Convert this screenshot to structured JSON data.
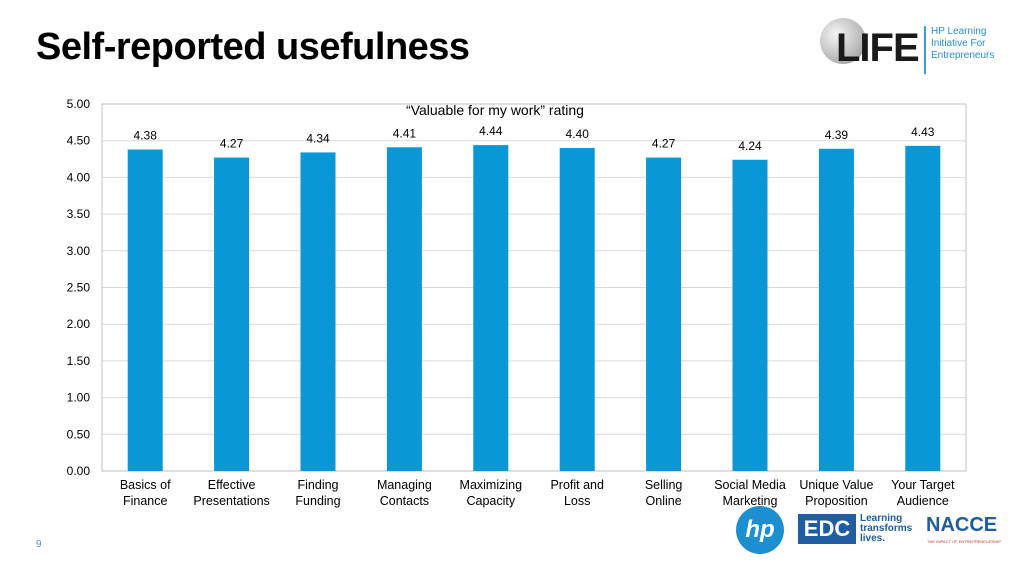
{
  "slide": {
    "title": "Self-reported usefulness",
    "page_number": "9"
  },
  "header_logo": {
    "name": "LIFE",
    "subtitle": "HP Learning Initiative For Entrepreneurs"
  },
  "footer_logos": {
    "hp": "hp",
    "edc": "EDC",
    "edc_tagline": "Learning transforms lives.",
    "nacce": "NACCE",
    "nacce_tagline": "THE IMPACT OF ENTREPRENEURSHIP"
  },
  "colors": {
    "bar": "#0997d6",
    "grid": "#d9d9d9",
    "axis": "#bfbfbf"
  },
  "chart_data": {
    "type": "bar",
    "title": "“Valuable for my work” rating",
    "categories": [
      [
        "Basics of",
        "Finance"
      ],
      [
        "Effective",
        "Presentations"
      ],
      [
        "Finding",
        "Funding"
      ],
      [
        "Managing",
        "Contacts"
      ],
      [
        "Maximizing",
        "Capacity"
      ],
      [
        "Profit and",
        "Loss"
      ],
      [
        "Selling",
        "Online"
      ],
      [
        "Social Media",
        "Marketing"
      ],
      [
        "Unique Value",
        "Proposition"
      ],
      [
        "Your Target",
        "Audience"
      ]
    ],
    "values": [
      4.38,
      4.27,
      4.34,
      4.41,
      4.44,
      4.4,
      4.27,
      4.24,
      4.39,
      4.43
    ],
    "data_labels": [
      "4.38",
      "4.27",
      "4.34",
      "4.41",
      "4.44",
      "4.40",
      "4.27",
      "4.24",
      "4.39",
      "4.43"
    ],
    "ylim": [
      0,
      5
    ],
    "yticks": [
      "0.00",
      "0.50",
      "1.00",
      "1.50",
      "2.00",
      "2.50",
      "3.00",
      "3.50",
      "4.00",
      "4.50",
      "5.00"
    ],
    "grid": true,
    "legend": "none",
    "xlabel": "",
    "ylabel": ""
  }
}
